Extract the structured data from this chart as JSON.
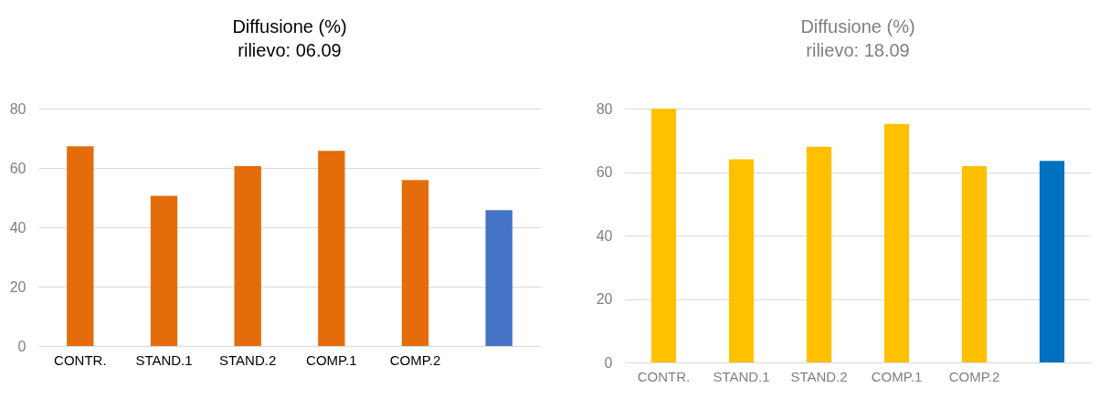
{
  "chart_data": [
    {
      "type": "bar",
      "title": "Diffusione (%)",
      "subtitle": "rilievo: 06.09",
      "categories": [
        "CONTR.",
        "STAND.1",
        "STAND.2",
        "COMP.1",
        "COMP.2",
        null
      ],
      "values": [
        67.3,
        50.6,
        60.6,
        65.8,
        55.9,
        45.8
      ],
      "colors": [
        "#e46c0a",
        "#e46c0a",
        "#e46c0a",
        "#e46c0a",
        "#e46c0a",
        "#4472c4"
      ],
      "ylim": [
        0,
        80
      ],
      "yticks": [
        0,
        20,
        40,
        60,
        80
      ],
      "grid": "y"
    },
    {
      "type": "bar",
      "title": "Diffusione (%)",
      "subtitle": "rilievo: 18.09",
      "categories": [
        "CONTR.",
        "STAND.1",
        "STAND.2",
        "COMP.1",
        "COMP.2",
        null
      ],
      "values": [
        80,
        64.0,
        68.0,
        75.2,
        61.9,
        63.5
      ],
      "colors": [
        "#ffc000",
        "#ffc000",
        "#ffc000",
        "#ffc000",
        "#ffc000",
        "#0070c0"
      ],
      "ylim": [
        0,
        80
      ],
      "yticks": [
        0,
        20,
        40,
        60,
        80
      ],
      "grid": "y"
    }
  ]
}
